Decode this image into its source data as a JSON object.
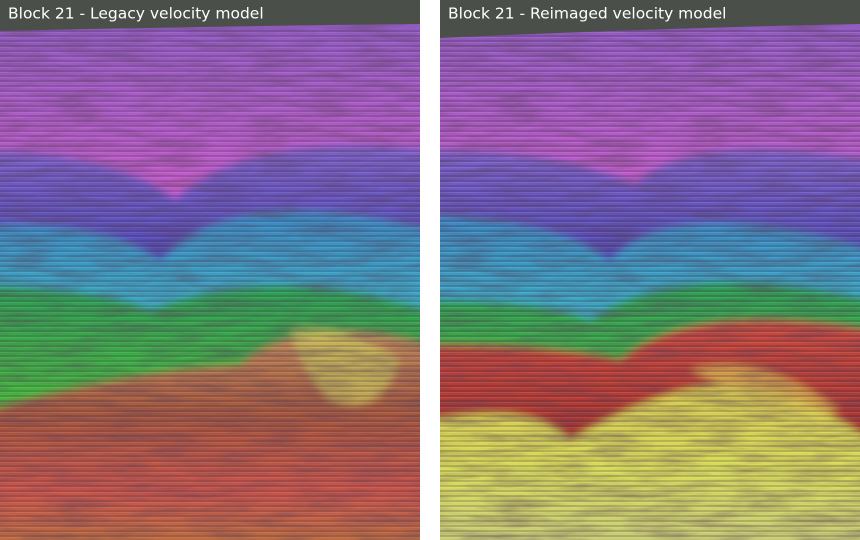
{
  "panels": [
    {
      "title": "Block 21 - Legacy velocity model"
    },
    {
      "title": "Block 21 - Reimaged velocity model"
    }
  ]
}
